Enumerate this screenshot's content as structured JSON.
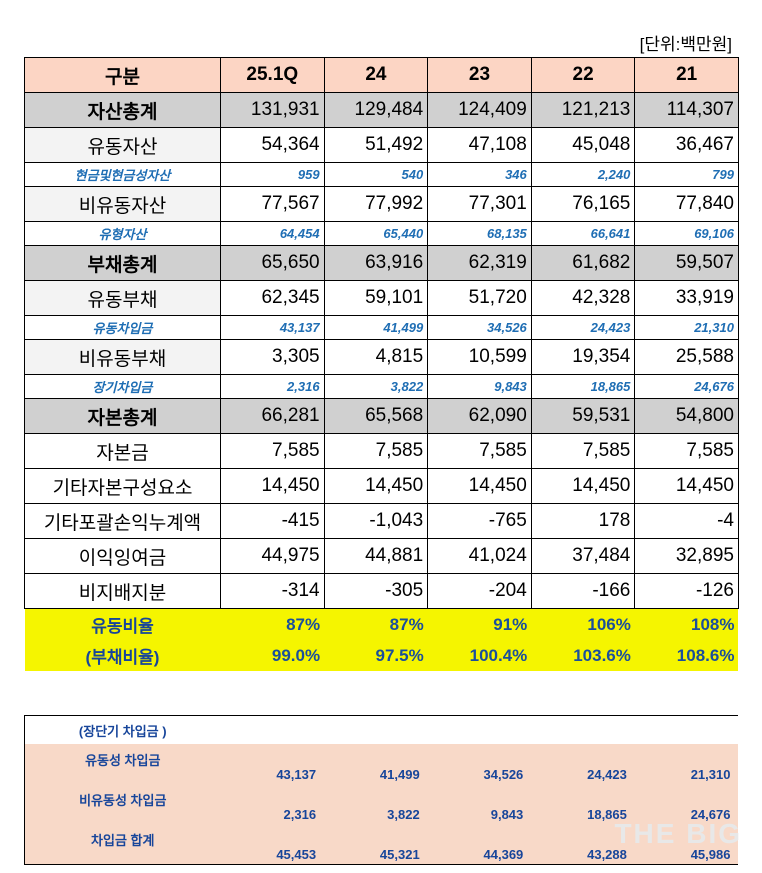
{
  "unit": "[단위:백만원]",
  "header": [
    "구분",
    "25.1Q",
    "24",
    "23",
    "22",
    "21"
  ],
  "rows": [
    {
      "label": "자산총계",
      "type": "total",
      "values": [
        "131,931",
        "129,484",
        "124,409",
        "121,213",
        "114,307"
      ]
    },
    {
      "label": "유동자산",
      "type": "light",
      "values": [
        "54,364",
        "51,492",
        "47,108",
        "45,048",
        "36,467"
      ]
    },
    {
      "label": "현금및현금성자산",
      "type": "sub",
      "values": [
        "959",
        "540",
        "346",
        "2,240",
        "799"
      ]
    },
    {
      "label": "비유동자산",
      "type": "light",
      "values": [
        "77,567",
        "77,992",
        "77,301",
        "76,165",
        "77,840"
      ]
    },
    {
      "label": "유형자산",
      "type": "sub",
      "values": [
        "64,454",
        "65,440",
        "68,135",
        "66,641",
        "69,106"
      ]
    },
    {
      "label": "부채총계",
      "type": "total",
      "values": [
        "65,650",
        "63,916",
        "62,319",
        "61,682",
        "59,507"
      ]
    },
    {
      "label": "유동부채",
      "type": "light",
      "values": [
        "62,345",
        "59,101",
        "51,720",
        "42,328",
        "33,919"
      ]
    },
    {
      "label": "유동차입금",
      "type": "sub",
      "values": [
        "43,137",
        "41,499",
        "34,526",
        "24,423",
        "21,310"
      ]
    },
    {
      "label": "비유동부채",
      "type": "light",
      "values": [
        "3,305",
        "4,815",
        "10,599",
        "19,354",
        "25,588"
      ]
    },
    {
      "label": "장기차입금",
      "type": "sub",
      "values": [
        "2,316",
        "3,822",
        "9,843",
        "18,865",
        "24,676"
      ]
    },
    {
      "label": "자본총계",
      "type": "total",
      "values": [
        "66,281",
        "65,568",
        "62,090",
        "59,531",
        "54,800"
      ]
    },
    {
      "label": "자본금",
      "type": "plain",
      "values": [
        "7,585",
        "7,585",
        "7,585",
        "7,585",
        "7,585"
      ]
    },
    {
      "label": "기타자본구성요소",
      "type": "plain",
      "values": [
        "14,450",
        "14,450",
        "14,450",
        "14,450",
        "14,450"
      ]
    },
    {
      "label": "기타포괄손익누계액",
      "type": "plain",
      "values": [
        "-415",
        "-1,043",
        "-765",
        "178",
        "-4"
      ]
    },
    {
      "label": "이익잉여금",
      "type": "plain",
      "values": [
        "44,975",
        "44,881",
        "41,024",
        "37,484",
        "32,895"
      ]
    },
    {
      "label": "비지배지분",
      "type": "plain",
      "values": [
        "-314",
        "-305",
        "-204",
        "-166",
        "-126"
      ]
    },
    {
      "label": "유동비율",
      "type": "ratio",
      "values": [
        "87%",
        "87%",
        "91%",
        "106%",
        "108%"
      ]
    },
    {
      "label": "(부채비율)",
      "type": "ratio",
      "values": [
        "99.0%",
        "97.5%",
        "100.4%",
        "103.6%",
        "108.6%"
      ]
    }
  ],
  "loans": {
    "title": "(장단기 차입금 )",
    "rows": [
      {
        "label": "유동성 차입금",
        "values": [
          "43,137",
          "41,499",
          "34,526",
          "24,423",
          "21,310"
        ]
      },
      {
        "label": "비유동성 차입금",
        "values": [
          "2,316",
          "3,822",
          "9,843",
          "18,865",
          "24,676"
        ]
      },
      {
        "label": "차입금 합계",
        "values": [
          "45,453",
          "45,321",
          "44,369",
          "43,288",
          "45,986"
        ]
      }
    ]
  },
  "watermark": "THE BIG"
}
